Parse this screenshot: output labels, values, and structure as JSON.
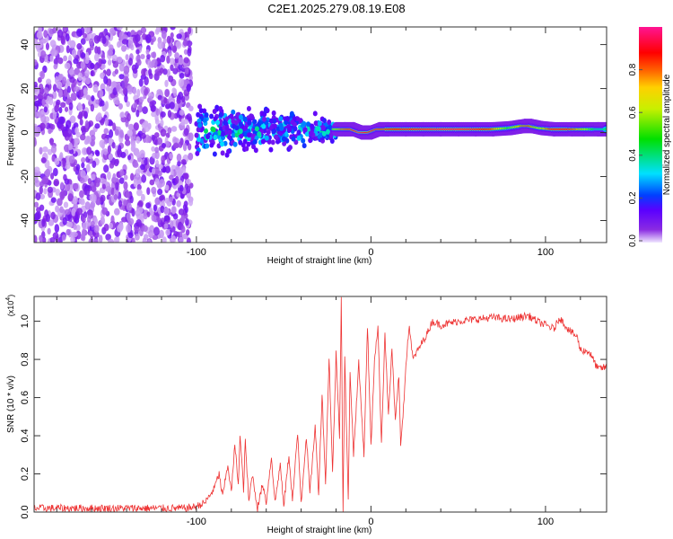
{
  "title": "C2E1.2025.279.08.19.E08",
  "chart_data": [
    {
      "type": "heatmap",
      "title": "C2E1.2025.279.08.19.E08",
      "xlabel": "Height of straight line (km)",
      "ylabel": "Frequency (Hz)",
      "xlim": [
        -193,
        135
      ],
      "ylim": [
        -50,
        48
      ],
      "xticks": [
        -100,
        0,
        100
      ],
      "xtick_labels": [
        "-100",
        "0",
        "100"
      ],
      "yticks": [
        40,
        20,
        0,
        -20,
        -40
      ],
      "ytick_labels": [
        "40",
        "20",
        "0",
        "-20",
        "-40"
      ],
      "colorbar": {
        "label": "Normalized spectral amplitude",
        "range": [
          0,
          1
        ],
        "ticks": [
          0.0,
          0.2,
          0.4,
          0.6,
          0.8
        ],
        "tick_labels": [
          "0.0",
          "0.2",
          "0.4",
          "0.6",
          "0.8"
        ]
      },
      "noise_region": {
        "x_range": [
          -193,
          -103
        ],
        "freq_range": [
          -50,
          48
        ],
        "amplitude_range": [
          0.02,
          0.12
        ]
      },
      "scatter_region": {
        "x_range": [
          -100,
          -20
        ],
        "freq_center": 1,
        "freq_spread_start": 10,
        "freq_spread_end": 4,
        "amplitude_range": [
          0.1,
          0.45
        ]
      },
      "ridge": [
        [
          -20,
          1.5,
          0.55
        ],
        [
          -15,
          1.5,
          0.8
        ],
        [
          -10,
          1.5,
          0.9
        ],
        [
          -5,
          0,
          0.95
        ],
        [
          0,
          0,
          0.9
        ],
        [
          5,
          1.5,
          0.9
        ],
        [
          10,
          1.5,
          0.85
        ],
        [
          20,
          1.5,
          0.9
        ],
        [
          30,
          1.5,
          0.92
        ],
        [
          40,
          1.5,
          0.95
        ],
        [
          50,
          1.5,
          0.95
        ],
        [
          60,
          1.5,
          0.93
        ],
        [
          70,
          1.5,
          0.85
        ],
        [
          80,
          2,
          0.5
        ],
        [
          88,
          3,
          0.8
        ],
        [
          92,
          3,
          0.85
        ],
        [
          98,
          2,
          0.6
        ],
        [
          105,
          1.5,
          0.9
        ],
        [
          115,
          1.5,
          0.9
        ],
        [
          122,
          1.5,
          0.7
        ],
        [
          130,
          1.5,
          0.45
        ],
        [
          135,
          1.5,
          0.4
        ]
      ]
    },
    {
      "type": "line",
      "xlabel": "Height of straight line (km)",
      "ylabel": "SNR (10 * v/v)",
      "scale_label": "(x10",
      "scale_exp": "4",
      "scale_close": ")",
      "xlim": [
        -193,
        135
      ],
      "ylim": [
        0,
        1.13
      ],
      "xticks": [
        -100,
        0,
        100
      ],
      "xtick_labels": [
        "-100",
        "0",
        "100"
      ],
      "yticks": [
        0,
        0.2,
        0.4,
        0.6,
        0.8,
        1.0
      ],
      "ytick_labels": [
        "0.0",
        "0.2",
        "0.4",
        "0.6",
        "0.8",
        "1.0"
      ],
      "color": "#ee3333",
      "noise_amplitude": 0.02,
      "series": [
        {
          "name": "SNR",
          "x": [
            -193,
            -180,
            -160,
            -140,
            -120,
            -105,
            -100,
            -95,
            -90,
            -87,
            -85,
            -82,
            -80,
            -78,
            -76,
            -75,
            -73,
            -72,
            -70,
            -68,
            -65,
            -62,
            -60,
            -57,
            -55,
            -52,
            -50,
            -47,
            -45,
            -42,
            -40,
            -37,
            -35,
            -32,
            -30,
            -28,
            -26,
            -24,
            -22,
            -20,
            -18,
            -17,
            -16,
            -15,
            -13,
            -12,
            -10,
            -7,
            -4,
            -2,
            0,
            2,
            4,
            6,
            8,
            10,
            12,
            14,
            16,
            17,
            19,
            20,
            22,
            24,
            27,
            30,
            33,
            35,
            40,
            50,
            60,
            70,
            80,
            90,
            95,
            100,
            105,
            108,
            112,
            115,
            118,
            120,
            125,
            130,
            135
          ],
          "y": [
            0.02,
            0.02,
            0.02,
            0.02,
            0.02,
            0.02,
            0.03,
            0.05,
            0.12,
            0.2,
            0.08,
            0.25,
            0.1,
            0.35,
            0.15,
            0.4,
            0.12,
            0.37,
            0.05,
            0.2,
            0.02,
            0.15,
            0.05,
            0.29,
            0.05,
            0.25,
            0.03,
            0.3,
            0.06,
            0.41,
            0.05,
            0.4,
            0.1,
            0.45,
            0.1,
            0.62,
            0.15,
            0.82,
            0.2,
            0.83,
            0.4,
            1.13,
            0.0,
            0.8,
            0.05,
            0.75,
            0.3,
            0.78,
            0.3,
            0.98,
            0.34,
            0.8,
            0.97,
            0.36,
            0.94,
            0.5,
            0.86,
            0.47,
            0.72,
            0.34,
            0.6,
            0.78,
            0.98,
            0.8,
            0.85,
            0.9,
            0.95,
            1.0,
            0.98,
            1.0,
            1.01,
            1.02,
            1.01,
            1.03,
            1.0,
            0.98,
            0.96,
            1.02,
            0.97,
            0.94,
            0.92,
            0.85,
            0.84,
            0.75,
            0.76
          ]
        }
      ]
    }
  ]
}
